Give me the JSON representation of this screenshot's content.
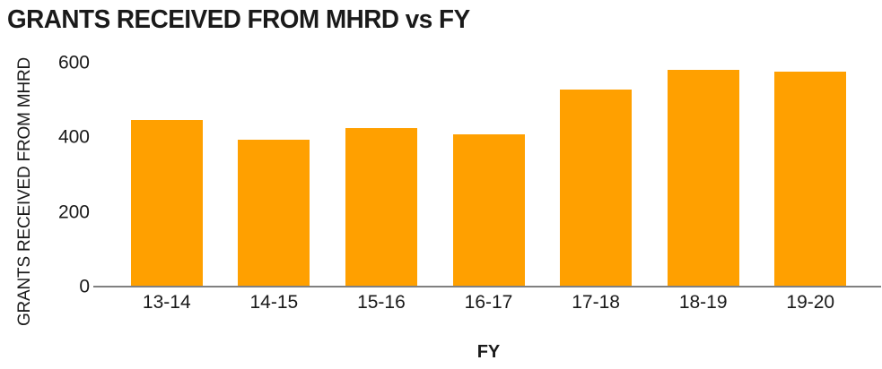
{
  "chart_data": {
    "type": "bar",
    "title": "GRANTS RECEIVED FROM MHRD vs FY",
    "xlabel": "FY",
    "ylabel": "GRANTS RECEIVED FROM MHRD",
    "categories": [
      "13-14",
      "14-15",
      "15-16",
      "16-17",
      "17-18",
      "18-19",
      "19-20"
    ],
    "values": [
      446,
      393,
      424,
      409,
      527,
      581,
      576
    ],
    "ylim": [
      0,
      600
    ],
    "yticks": [
      0,
      200,
      400,
      600
    ],
    "grid": false,
    "legend": false,
    "bar_color": "#FFA000",
    "axis_line_color": "#808080",
    "text_color": "#1A1A1A",
    "background_color": "#FFFFFF"
  }
}
